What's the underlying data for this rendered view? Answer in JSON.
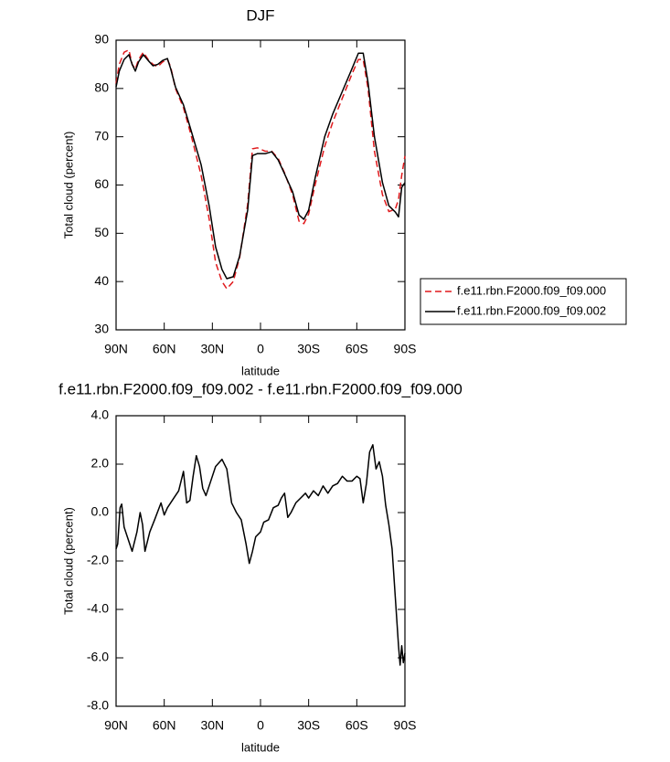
{
  "chart_data": [
    {
      "type": "line",
      "title": "DJF",
      "xlabel": "latitude",
      "ylabel": "Total cloud (percent)",
      "x": [
        90,
        88,
        85,
        82,
        80,
        78,
        76,
        73,
        70,
        67,
        64,
        61,
        58,
        56,
        53,
        48,
        43,
        37,
        32,
        28,
        24,
        21,
        17,
        13,
        8,
        5,
        2,
        -3,
        -7,
        -11,
        -15,
        -20,
        -24,
        -27,
        -30,
        -34,
        -40,
        -45,
        -51,
        -57,
        -61,
        -64,
        -67,
        -71,
        -76,
        -80,
        -84,
        -86,
        -88,
        -90
      ],
      "series": [
        {
          "name": "f.e11.rbn.F2000.f09_f09.000",
          "color": "#e0191c",
          "line_style": "dashed",
          "values": [
            81,
            85,
            87.5,
            88,
            85,
            84,
            86,
            87.5,
            86,
            85,
            84.5,
            85.5,
            86,
            84.5,
            80,
            76,
            70,
            62,
            53,
            44,
            40,
            38.5,
            40,
            45,
            56,
            67.5,
            67.7,
            67,
            67,
            65.5,
            62.5,
            58,
            52.5,
            52,
            54,
            60,
            68,
            73,
            78,
            83,
            86,
            86,
            80,
            67,
            58,
            54.5,
            55,
            57,
            62,
            66
          ]
        },
        {
          "name": "f.e11.rbn.F2000.f09_f09.002",
          "color": "#000000",
          "line_style": "solid",
          "values": [
            80.3,
            83.6,
            86,
            87,
            85,
            83.6,
            85.5,
            87,
            85.8,
            84.7,
            85,
            85.8,
            86.2,
            84.1,
            80.3,
            76.6,
            71,
            64.2,
            55.7,
            47.2,
            42.5,
            40.6,
            41,
            45.3,
            54.8,
            66.1,
            66.5,
            66.5,
            66.9,
            65.2,
            62.3,
            58.6,
            53.8,
            52.9,
            54.8,
            61.4,
            70,
            74.7,
            79.4,
            84.1,
            87.3,
            87.3,
            81.3,
            70,
            60.5,
            55.7,
            54.4,
            53.4,
            59.5,
            60.5
          ]
        }
      ],
      "xlim": [
        90,
        -90
      ],
      "xticks": [
        {
          "value": 90,
          "label": "90N"
        },
        {
          "value": 60,
          "label": "60N"
        },
        {
          "value": 30,
          "label": "30N"
        },
        0,
        {
          "value": -30,
          "label": "30S"
        },
        {
          "value": -60,
          "label": "60S"
        },
        {
          "value": -90,
          "label": "90S"
        }
      ],
      "ylim": [
        30,
        90
      ],
      "yticks": [
        30,
        40,
        50,
        60,
        70,
        80,
        90
      ],
      "legend": "right"
    },
    {
      "type": "line",
      "title": "f.e11.rbn.F2000.f09_f09.002 - f.e11.rbn.F2000.f09_f09.000",
      "xlabel": "latitude",
      "ylabel": "Total cloud (percent)",
      "x": [
        90,
        89,
        87.5,
        86.5,
        85,
        83,
        80,
        77,
        75,
        73.5,
        72,
        69,
        66,
        62,
        60,
        58,
        54,
        51,
        48,
        46,
        44,
        42,
        40,
        38,
        36,
        34,
        31,
        28,
        24,
        21,
        18,
        15,
        12,
        9,
        7,
        5,
        3,
        0,
        -2,
        -5,
        -8,
        -11,
        -13,
        -15,
        -17,
        -19,
        -22,
        -25,
        -28,
        -30,
        -33,
        -36,
        -39,
        -42,
        -45,
        -48,
        -51,
        -54,
        -57,
        -60,
        -62,
        -64,
        -66,
        -68,
        -70,
        -72,
        -74,
        -76,
        -78,
        -80,
        -82,
        -84,
        -86,
        -87,
        -88,
        -89,
        -90
      ],
      "series": [
        {
          "color": "#000000",
          "line_style": "solid",
          "values": [
            -1.5,
            -1.3,
            0.2,
            0.35,
            -0.6,
            -1.0,
            -1.6,
            -0.8,
            0.0,
            -0.5,
            -1.6,
            -0.8,
            -0.3,
            0.4,
            -0.1,
            0.2,
            0.6,
            0.9,
            1.7,
            0.4,
            0.5,
            1.5,
            2.35,
            1.9,
            1.0,
            0.7,
            1.3,
            1.9,
            2.2,
            1.8,
            0.4,
            0.0,
            -0.3,
            -1.3,
            -2.1,
            -1.6,
            -1.0,
            -0.8,
            -0.4,
            -0.3,
            0.2,
            0.3,
            0.6,
            0.8,
            -0.2,
            0.0,
            0.4,
            0.6,
            0.8,
            0.6,
            0.9,
            0.7,
            1.1,
            0.8,
            1.1,
            1.2,
            1.5,
            1.3,
            1.3,
            1.5,
            1.4,
            0.4,
            1.2,
            2.5,
            2.8,
            1.8,
            2.1,
            1.5,
            0.3,
            -0.5,
            -1.5,
            -3.5,
            -5.5,
            -6.3,
            -5.5,
            -6.2,
            -5.8
          ]
        }
      ],
      "xlim": [
        90,
        -90
      ],
      "xticks": [
        {
          "value": 90,
          "label": "90N"
        },
        {
          "value": 60,
          "label": "60N"
        },
        {
          "value": 30,
          "label": "30N"
        },
        0,
        {
          "value": -30,
          "label": "30S"
        },
        {
          "value": -60,
          "label": "60S"
        },
        {
          "value": -90,
          "label": "90S"
        }
      ],
      "ylim": [
        -8,
        4
      ],
      "yticks": [
        {
          "value": -8,
          "label": "-8.0"
        },
        {
          "value": -6,
          "label": "-6.0"
        },
        {
          "value": -4,
          "label": "-4.0"
        },
        {
          "value": -2,
          "label": "-2.0"
        },
        {
          "value": 0,
          "label": "0.0"
        },
        {
          "value": 2,
          "label": "2.0"
        },
        {
          "value": 4,
          "label": "4.0"
        }
      ]
    }
  ]
}
